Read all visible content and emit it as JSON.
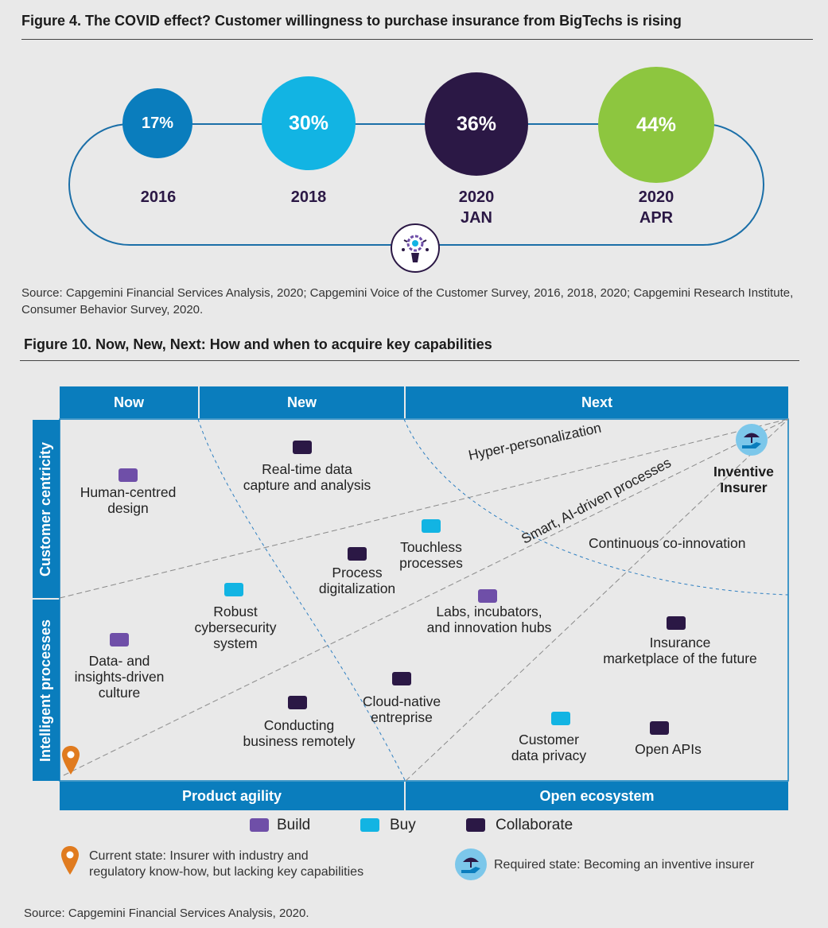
{
  "figure4": {
    "title": "Figure 4. The COVID effect? Customer willingness to purchase insurance from BigTechs is rising",
    "points": [
      {
        "value": "17%",
        "year": "2016",
        "year2": "",
        "color": "#0a7dbd"
      },
      {
        "value": "30%",
        "year": "2018",
        "year2": "",
        "color": "#12b4e3"
      },
      {
        "value": "36%",
        "year": "2020",
        "year2": "JAN",
        "color": "#2b1845"
      },
      {
        "value": "44%",
        "year": "2020",
        "year2": "APR",
        "color": "#8dc63f"
      }
    ],
    "source": "Source:  Capgemini Financial Services Analysis, 2020; Capgemini Voice of the Customer Survey, 2016, 2018, 2020; Capgemini Research Institute, Consumer Behavior Survey, 2020."
  },
  "figure10": {
    "title": "Figure 10. Now, New, Next: How and when to acquire key capabilities",
    "columns": [
      "Now",
      "New",
      "Next"
    ],
    "rows": [
      "Customer centricity",
      "Intelligent processes"
    ],
    "bottom": [
      "Product agility",
      "Open ecosystem"
    ],
    "paths": [
      "Hyper-personalization",
      "Smart, AI-driven processes",
      "Continuous co-innovation"
    ],
    "target_label": [
      "Inventive",
      "Insurer"
    ],
    "items": [
      {
        "l1": "Human-centred",
        "l2": "design",
        "kind": "build"
      },
      {
        "l1": "Real-time data",
        "l2": "capture and analysis",
        "kind": "collaborate"
      },
      {
        "l1": "Touchless",
        "l2": "processes",
        "kind": "buy"
      },
      {
        "l1": "Process",
        "l2": "digitalization",
        "kind": "collaborate"
      },
      {
        "l1": "Robust",
        "l2": "cybersecurity",
        "l3": "system",
        "kind": "buy"
      },
      {
        "l1": "Labs, incubators,",
        "l2": "and innovation hubs",
        "kind": "build"
      },
      {
        "l1": "Insurance",
        "l2": "marketplace of the future",
        "kind": "collaborate"
      },
      {
        "l1": "Data- and",
        "l2": "insights-driven",
        "l3": "culture",
        "kind": "build"
      },
      {
        "l1": "Cloud-native",
        "l2": "entreprise",
        "kind": "collaborate"
      },
      {
        "l1": "Conducting",
        "l2": "business remotely",
        "kind": "collaborate"
      },
      {
        "l1": "Customer",
        "l2": "data privacy",
        "kind": "buy"
      },
      {
        "l1": "Open APIs",
        "l2": "",
        "kind": "collaborate"
      }
    ],
    "legend": {
      "build": {
        "label": "Build",
        "color": "#6f4fa8"
      },
      "buy": {
        "label": "Buy",
        "color": "#12b4e3"
      },
      "collaborate": {
        "label": "Collaborate",
        "color": "#2b1845"
      }
    },
    "current_state": [
      "Current state: Insurer with industry and",
      "regulatory know-how, but lacking key capabilities"
    ],
    "required_state": "Required state: Becoming an inventive insurer",
    "source": "Source:  Capgemini Financial Services Analysis, 2020."
  }
}
